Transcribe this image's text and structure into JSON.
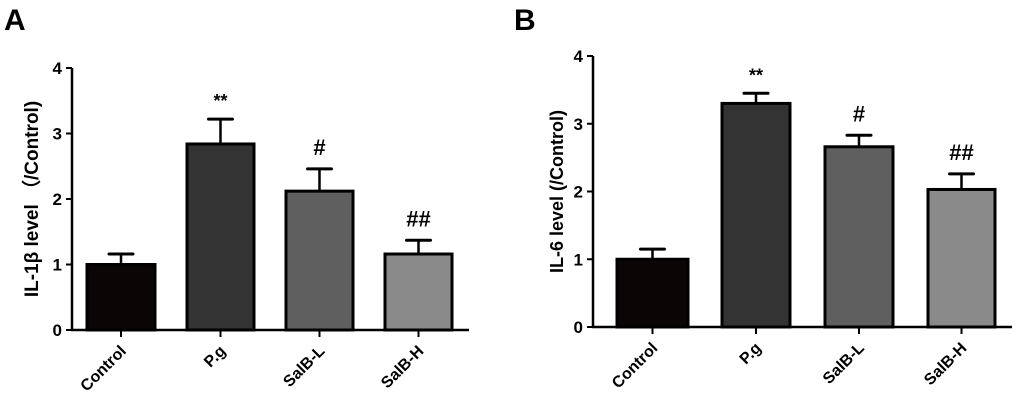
{
  "chart_data": [
    {
      "type": "bar",
      "panel_label": "A",
      "categories": [
        "Control",
        "P.g",
        "SalB-L",
        "SalB-H"
      ],
      "values": [
        1.0,
        2.84,
        2.12,
        1.16
      ],
      "errors": [
        0.16,
        0.38,
        0.34,
        0.21
      ],
      "annotations": [
        "",
        "**",
        "#",
        "##"
      ],
      "colors": [
        "#0a0606",
        "#333333",
        "#5f5f5f",
        "#8a8a8a"
      ],
      "ylabel": "IL-1β  level （/Control)",
      "ylim": [
        0,
        4
      ],
      "yticks": [
        "0",
        "1",
        "2",
        "3",
        "4"
      ],
      "grid": false
    },
    {
      "type": "bar",
      "panel_label": "B",
      "categories": [
        "Control",
        "P.g",
        "SalB-L",
        "SalB-H"
      ],
      "values": [
        1.0,
        3.3,
        2.66,
        2.03
      ],
      "errors": [
        0.15,
        0.15,
        0.17,
        0.23
      ],
      "annotations": [
        "",
        "**",
        "#",
        "##"
      ],
      "colors": [
        "#0a0606",
        "#333333",
        "#5f5f5f",
        "#8a8a8a"
      ],
      "ylabel": "IL-6 level (/Control)",
      "ylim": [
        0,
        4
      ],
      "yticks": [
        "0",
        "1",
        "2",
        "3",
        "4"
      ],
      "grid": false
    }
  ]
}
